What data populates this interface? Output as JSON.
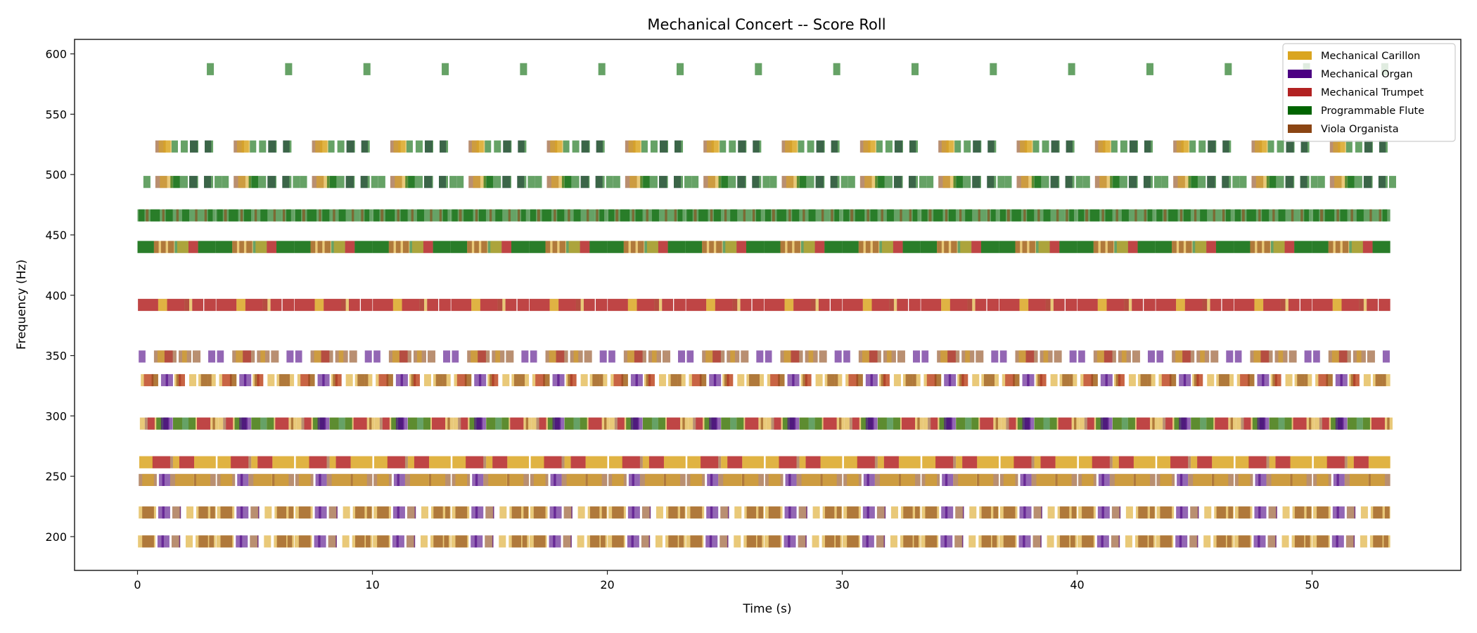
{
  "chart_data": {
    "type": "bar",
    "orientation": "horizontal",
    "title": "Mechanical Concert -- Score Roll",
    "xlabel": "Time (s)",
    "ylabel": "Frequency (Hz)",
    "xlim": [
      -2.68,
      56.33
    ],
    "ylim": [
      172,
      612
    ],
    "xticks": [
      0,
      10,
      20,
      30,
      40,
      50
    ],
    "yticks": [
      200,
      250,
      300,
      350,
      400,
      450,
      500,
      550,
      600
    ],
    "grid": false,
    "legend_position": "top-right",
    "note_alpha": 0.6,
    "note_height_hz": 10,
    "pattern_period_s": 3.333,
    "pattern_repeats": 16,
    "end_time_s": 53.6,
    "instruments": [
      {
        "name": "Mechanical Carillon",
        "color": "#DAA520"
      },
      {
        "name": "Mechanical Organ",
        "color": "#4B0082"
      },
      {
        "name": "Mechanical Trumpet",
        "color": "#B22222"
      },
      {
        "name": "Programmable Flute",
        "color": "#006400"
      },
      {
        "name": "Viola Organista",
        "color": "#8B4513"
      }
    ],
    "rows": [
      {
        "freq": 587.33,
        "notes": [
          [
            2.95,
            0.3,
            3
          ]
        ]
      },
      {
        "freq": 523.25,
        "notes": [
          [
            0.76,
            0.44,
            4
          ],
          [
            0.9,
            0.55,
            0
          ],
          [
            1.1,
            0.3,
            0
          ],
          [
            1.45,
            0.27,
            3
          ],
          [
            1.84,
            0.3,
            3
          ],
          [
            2.23,
            0.33,
            1
          ],
          [
            2.23,
            0.36,
            3
          ],
          [
            2.86,
            0.28,
            1
          ],
          [
            2.86,
            0.36,
            3
          ]
        ]
      },
      {
        "freq": 493.88,
        "notes": [
          [
            0.25,
            0.3,
            3
          ],
          [
            0.76,
            0.5,
            4
          ],
          [
            0.95,
            0.55,
            0
          ],
          [
            1.4,
            0.4,
            3
          ],
          [
            1.52,
            0.62,
            3
          ],
          [
            2.2,
            0.34,
            1
          ],
          [
            2.2,
            0.38,
            3
          ],
          [
            2.83,
            0.3,
            1
          ],
          [
            2.83,
            0.39,
            3
          ],
          [
            3.28,
            0.3,
            3
          ]
        ]
      },
      {
        "freq": 466.16,
        "notes": [
          [
            0,
            0.3,
            3
          ],
          [
            0.05,
            0.25,
            3
          ],
          [
            0.3,
            0.7,
            3
          ],
          [
            0.35,
            0.12,
            4
          ],
          [
            0.55,
            0.4,
            3
          ],
          [
            1.0,
            0.6,
            3
          ],
          [
            1.05,
            0.1,
            4
          ],
          [
            1.2,
            0.3,
            3
          ],
          [
            1.6,
            0.6,
            3
          ],
          [
            1.65,
            0.1,
            4
          ],
          [
            1.9,
            0.3,
            3
          ],
          [
            2.2,
            0.6,
            3
          ],
          [
            2.45,
            0.1,
            4
          ],
          [
            2.8,
            0.53,
            3
          ],
          [
            2.85,
            0.1,
            4
          ],
          [
            3.0,
            0.2,
            3
          ]
        ]
      },
      {
        "freq": 440.0,
        "notes": [
          [
            0,
            0.7,
            3
          ],
          [
            0,
            0.7,
            3
          ],
          [
            0.7,
            0.88,
            0
          ],
          [
            0.7,
            0.2,
            4
          ],
          [
            1.0,
            0.2,
            4
          ],
          [
            1.3,
            0.25,
            4
          ],
          [
            1.58,
            0.59,
            3
          ],
          [
            1.69,
            0.48,
            0
          ],
          [
            2.17,
            0.41,
            2
          ],
          [
            2.17,
            0.41,
            2
          ],
          [
            2.58,
            0.75,
            3
          ],
          [
            2.58,
            0.75,
            3
          ]
        ]
      },
      {
        "freq": 392.0,
        "notes": [
          [
            0.02,
            0.86,
            2
          ],
          [
            0.02,
            0.86,
            2
          ],
          [
            0.88,
            0.38,
            0
          ],
          [
            0.88,
            0.38,
            0
          ],
          [
            1.26,
            0.74,
            2
          ],
          [
            1.26,
            0.74,
            2
          ],
          [
            2.0,
            0.2,
            4
          ],
          [
            2.0,
            0.2,
            2
          ],
          [
            2.2,
            0.13,
            0
          ],
          [
            2.33,
            0.47,
            2
          ],
          [
            2.33,
            0.47,
            2
          ],
          [
            2.84,
            0.49,
            2
          ],
          [
            2.84,
            0.49,
            2
          ]
        ]
      },
      {
        "freq": 349.23,
        "notes": [
          [
            0.05,
            0.29,
            1
          ],
          [
            0.7,
            0.96,
            4
          ],
          [
            0.85,
            0.3,
            0
          ],
          [
            1.15,
            0.35,
            2
          ],
          [
            1.75,
            0.54,
            4
          ],
          [
            1.9,
            0.2,
            0
          ],
          [
            2.35,
            0.33,
            4
          ],
          [
            3.01,
            0.3,
            1
          ]
        ]
      },
      {
        "freq": 329.63,
        "notes": [
          [
            0.14,
            0.74,
            0
          ],
          [
            0.27,
            0.41,
            2
          ],
          [
            0.6,
            0.28,
            4
          ],
          [
            1.0,
            0.51,
            1
          ],
          [
            1.2,
            0.1,
            1
          ],
          [
            1.57,
            0.45,
            0
          ],
          [
            1.65,
            0.2,
            4
          ],
          [
            1.75,
            0.27,
            2
          ],
          [
            2.2,
            0.3,
            0
          ],
          [
            2.59,
            0.74,
            0
          ],
          [
            2.7,
            0.3,
            4
          ],
          [
            3.0,
            0.15,
            4
          ]
        ]
      },
      {
        "freq": 293.66,
        "notes": [
          [
            0.1,
            0.21,
            0
          ],
          [
            0.31,
            0.12,
            4
          ],
          [
            0.43,
            0.3,
            2
          ],
          [
            0.43,
            0.3,
            2
          ],
          [
            0.73,
            0.3,
            0
          ],
          [
            0.8,
            0.5,
            3
          ],
          [
            1.0,
            0.35,
            1
          ],
          [
            1.1,
            0.4,
            1
          ],
          [
            1.51,
            0.39,
            0
          ],
          [
            1.51,
            0.39,
            3
          ],
          [
            1.9,
            0.27,
            3
          ],
          [
            2.17,
            0.36,
            0
          ],
          [
            2.17,
            0.3,
            3
          ],
          [
            2.53,
            0.57,
            2
          ],
          [
            2.53,
            0.57,
            2
          ],
          [
            3.1,
            0.33,
            0
          ],
          [
            3.2,
            0.1,
            4
          ]
        ]
      },
      {
        "freq": 261.63,
        "notes": [
          [
            0.075,
            0.57,
            0
          ],
          [
            0.075,
            0.57,
            0
          ],
          [
            0.64,
            0.75,
            2
          ],
          [
            0.64,
            0.75,
            2
          ],
          [
            1.39,
            0.12,
            4
          ],
          [
            1.51,
            0.27,
            0
          ],
          [
            1.51,
            0.27,
            0
          ],
          [
            1.78,
            0.63,
            2
          ],
          [
            1.78,
            0.63,
            2
          ],
          [
            2.41,
            0.92,
            0
          ],
          [
            2.41,
            0.92,
            0
          ]
        ]
      },
      {
        "freq": 246.94,
        "notes": [
          [
            0.05,
            0.77,
            4
          ],
          [
            0.2,
            0.5,
            0
          ],
          [
            0.91,
            0.48,
            1
          ],
          [
            1.05,
            0.1,
            1
          ],
          [
            1.39,
            1.0,
            4
          ],
          [
            1.6,
            0.9,
            0
          ],
          [
            2.4,
            0.93,
            4
          ],
          [
            2.5,
            0.6,
            0
          ]
        ]
      },
      {
        "freq": 220.0,
        "notes": [
          [
            0.05,
            0.74,
            0
          ],
          [
            0.2,
            0.5,
            4
          ],
          [
            0.88,
            0.51,
            1
          ],
          [
            1.05,
            0.1,
            1
          ],
          [
            1.48,
            0.36,
            4
          ],
          [
            1.8,
            0.05,
            1
          ],
          [
            2.08,
            0.3,
            0
          ],
          [
            2.5,
            0.83,
            0
          ],
          [
            2.6,
            0.4,
            4
          ],
          [
            3.1,
            0.2,
            4
          ]
        ]
      },
      {
        "freq": 196.0,
        "notes": [
          [
            0.02,
            0.74,
            0
          ],
          [
            0.2,
            0.5,
            4
          ],
          [
            0.85,
            0.51,
            1
          ],
          [
            1.02,
            0.1,
            1
          ],
          [
            1.45,
            0.36,
            4
          ],
          [
            1.77,
            0.05,
            1
          ],
          [
            2.05,
            0.3,
            0
          ],
          [
            2.47,
            0.86,
            0
          ],
          [
            2.6,
            0.4,
            4
          ],
          [
            3.05,
            0.2,
            4
          ]
        ]
      }
    ]
  }
}
